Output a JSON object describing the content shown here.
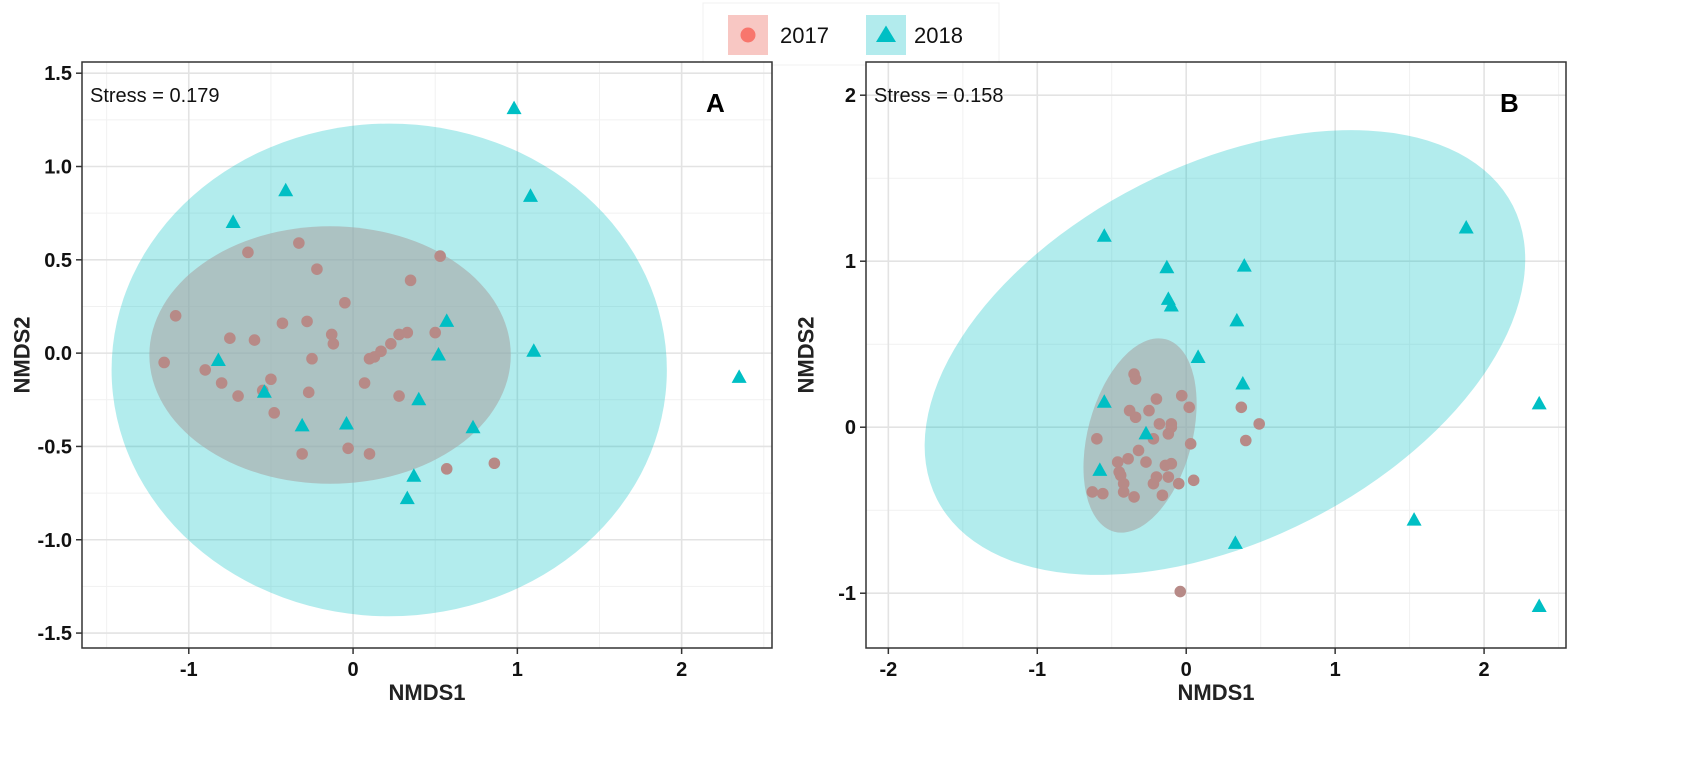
{
  "legend": {
    "entries": [
      {
        "label": "2017",
        "color": "#F8766D",
        "shape": "circle"
      },
      {
        "label": "2018",
        "color": "#00BFC4",
        "shape": "triangle"
      }
    ]
  },
  "chart_data": [
    {
      "type": "scatter",
      "panel_label": "A",
      "stress_text": "Stress = 0.179",
      "xlabel": "NMDS1",
      "ylabel": "NMDS2",
      "xlim": [
        -1.65,
        2.55
      ],
      "ylim": [
        -1.58,
        1.56
      ],
      "xticks": [
        -1,
        0,
        1,
        2
      ],
      "yticks": [
        -1.5,
        -1.0,
        -0.5,
        0.0,
        0.5,
        1.0,
        1.5
      ],
      "ytick_labels": [
        "-1.5",
        "-1.0",
        "-0.5",
        "0.0",
        "0.5",
        "1.0",
        "1.5"
      ],
      "grid": true,
      "ellipses": [
        {
          "series": "2018",
          "cx": 0.22,
          "cy": -0.09,
          "rx": 1.69,
          "ry": 1.32,
          "angle": 0
        },
        {
          "series": "2017",
          "cx": -0.14,
          "cy": -0.01,
          "rx": 1.1,
          "ry": 0.69,
          "angle": 0
        }
      ],
      "series": [
        {
          "name": "2017",
          "shape": "circle",
          "x": [
            -1.15,
            -1.08,
            -0.9,
            -0.8,
            -0.75,
            -0.7,
            -0.64,
            -0.6,
            -0.55,
            -0.5,
            -0.48,
            -0.43,
            -0.33,
            -0.31,
            -0.28,
            -0.27,
            -0.25,
            -0.22,
            -0.13,
            -0.12,
            -0.05,
            -0.03,
            0.07,
            0.1,
            0.13,
            0.17,
            0.23,
            0.28,
            0.28,
            0.33,
            0.35,
            0.5,
            0.53,
            0.57,
            0.86,
            0.1
          ],
          "y": [
            -0.05,
            0.2,
            -0.09,
            -0.16,
            0.08,
            -0.23,
            0.54,
            0.07,
            -0.2,
            -0.14,
            -0.32,
            0.16,
            0.59,
            -0.54,
            0.17,
            -0.21,
            -0.03,
            0.45,
            0.1,
            0.05,
            0.27,
            -0.51,
            -0.16,
            -0.03,
            -0.02,
            0.01,
            0.05,
            0.1,
            -0.23,
            0.11,
            0.39,
            0.11,
            0.52,
            -0.62,
            -0.59,
            -0.54
          ]
        },
        {
          "name": "2018",
          "shape": "triangle",
          "x": [
            0.98,
            1.08,
            1.1,
            -0.41,
            -0.73,
            0.57,
            -0.82,
            0.52,
            -0.54,
            0.4,
            -0.31,
            -0.04,
            0.73,
            0.37,
            0.33,
            2.35
          ],
          "y": [
            1.31,
            0.84,
            0.01,
            0.87,
            0.7,
            0.17,
            -0.04,
            -0.01,
            -0.21,
            -0.25,
            -0.39,
            -0.38,
            -0.4,
            -0.66,
            -0.78,
            -0.13
          ]
        }
      ]
    },
    {
      "type": "scatter",
      "panel_label": "B",
      "stress_text": "Stress = 0.158",
      "xlabel": "NMDS1",
      "ylabel": "NMDS2",
      "xlim": [
        -2.15,
        2.55
      ],
      "ylim": [
        -1.33,
        2.2
      ],
      "xticks": [
        -2,
        -1,
        0,
        1,
        2
      ],
      "yticks": [
        -1,
        0,
        1,
        2
      ],
      "ytick_labels": [
        "-1",
        "0",
        "1",
        "2"
      ],
      "grid": true,
      "ellipses": [
        {
          "series": "2018",
          "cx": 0.26,
          "cy": 0.45,
          "rx": 2.17,
          "ry": 1.13,
          "angle": -27
        },
        {
          "series": "2017",
          "cx": -0.31,
          "cy": -0.05,
          "rx": 0.35,
          "ry": 0.6,
          "angle": 15
        }
      ],
      "series": [
        {
          "name": "2017",
          "shape": "circle",
          "x": [
            -0.35,
            -0.34,
            -0.38,
            -0.1,
            -0.2,
            -0.25,
            -0.18,
            -0.12,
            -0.03,
            0.02,
            -0.22,
            -0.32,
            -0.27,
            -0.14,
            -0.1,
            0.03,
            0.37,
            0.49,
            -0.6,
            -0.39,
            -0.46,
            -0.45,
            -0.44,
            -0.42,
            -0.35,
            -0.16,
            -0.12,
            -0.22,
            -0.05,
            0.05,
            -0.1,
            -0.63,
            -0.56,
            -0.42,
            -0.34,
            -0.2,
            -0.04,
            0.4
          ],
          "y": [
            0.32,
            0.29,
            0.1,
            0.0,
            0.17,
            0.1,
            0.02,
            -0.04,
            0.19,
            0.12,
            -0.07,
            -0.14,
            -0.21,
            -0.23,
            -0.22,
            -0.1,
            0.12,
            0.02,
            -0.07,
            -0.19,
            -0.21,
            -0.27,
            -0.29,
            -0.39,
            -0.42,
            -0.41,
            -0.3,
            -0.34,
            -0.34,
            -0.32,
            0.02,
            -0.39,
            -0.4,
            -0.34,
            0.06,
            -0.3,
            -0.99,
            -0.08
          ]
        },
        {
          "name": "2018",
          "shape": "triangle",
          "x": [
            1.88,
            -0.55,
            -0.13,
            0.39,
            -0.12,
            -0.1,
            0.34,
            0.08,
            0.38,
            -0.55,
            -0.27,
            -0.58,
            0.33,
            1.53,
            2.37,
            2.37
          ],
          "y": [
            1.2,
            1.15,
            0.96,
            0.97,
            0.77,
            0.73,
            0.64,
            0.42,
            0.26,
            0.15,
            -0.04,
            -0.26,
            -0.7,
            -0.56,
            0.14,
            -1.08
          ]
        }
      ]
    }
  ]
}
